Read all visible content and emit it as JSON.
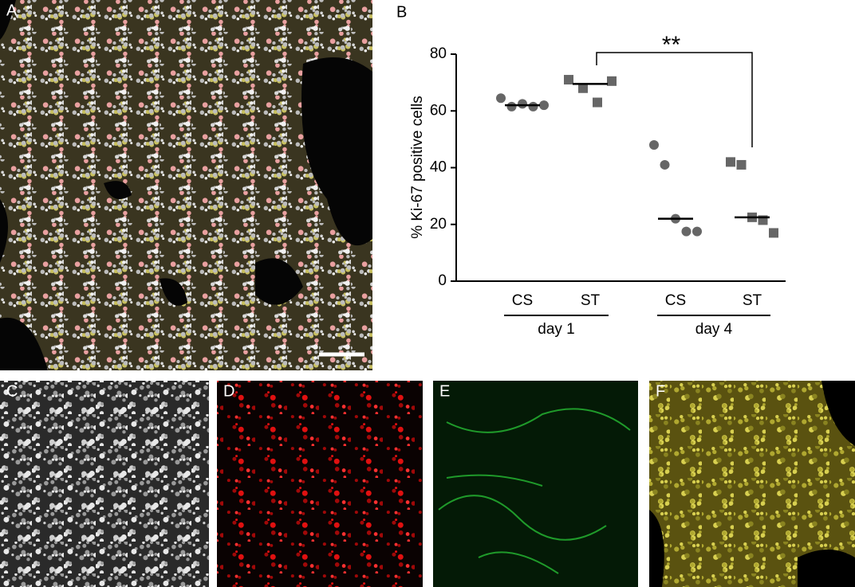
{
  "panel_labels": [
    "A",
    "C",
    "D",
    "E",
    "F"
  ],
  "chart_data": {
    "type": "dot",
    "panel_label": "B",
    "ylabel": "% Ki-67 positive cells",
    "categories": [
      "CS",
      "ST",
      "CS",
      "ST"
    ],
    "groups": [
      "day 1",
      "day 4"
    ],
    "markers": [
      "circle",
      "square",
      "circle",
      "square"
    ],
    "color": "#666666",
    "points": [
      [
        64.5,
        61.5,
        62.5,
        61.5,
        62
      ],
      [
        71,
        68,
        63,
        70.5
      ],
      [
        48,
        41,
        22,
        17.5,
        17.5
      ],
      [
        42,
        41,
        22.5,
        21.5,
        17
      ]
    ],
    "medians": [
      62,
      69.5,
      22,
      22.5
    ],
    "annotation": "**",
    "ylim": [
      0,
      80
    ],
    "yticks": [
      0,
      20,
      40,
      60,
      80
    ]
  }
}
